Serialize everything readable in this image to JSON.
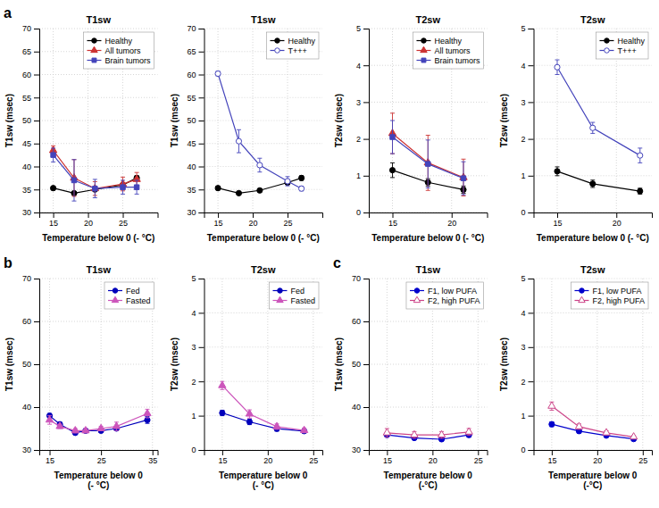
{
  "chart_data": [
    {
      "type": "line",
      "title": "T1sw",
      "annotation": "a",
      "xlabel": "Temperature below 0 (- °C)",
      "ylabel": "T1sw (msec)",
      "xlim": [
        13,
        30
      ],
      "ylim": [
        30,
        70
      ],
      "xticks": [
        15,
        20,
        25
      ],
      "yticks": [
        30,
        35,
        40,
        45,
        50,
        55,
        60,
        65,
        70
      ],
      "grid": true,
      "legend": "upper right",
      "series": [
        {
          "name": "Healthy",
          "color": "#000000",
          "marker": "circle",
          "line_style": "solid",
          "x": [
            15,
            18,
            21,
            25,
            27
          ],
          "values": [
            35.3,
            34.2,
            35.0,
            36.0,
            37.5
          ],
          "errors": [
            0.4,
            0.3,
            0.4,
            0.5,
            0.5
          ]
        },
        {
          "name": "All tumors",
          "color": "#cc3333",
          "marker": "triangle",
          "line_style": "solid",
          "x": [
            15,
            18,
            21,
            25,
            27
          ],
          "values": [
            43.5,
            37.5,
            35.2,
            36.2,
            37.2
          ],
          "errors": [
            1.0,
            4.0,
            1.5,
            1.5,
            1.5
          ]
        },
        {
          "name": "Brain tumors",
          "color": "#4444bb",
          "marker": "square",
          "line_style": "solid",
          "x": [
            15,
            18,
            21,
            25,
            27
          ],
          "values": [
            42.5,
            37.0,
            35.2,
            35.5,
            35.5
          ],
          "errors": [
            1.5,
            4.5,
            2.0,
            1.5,
            1.5
          ]
        }
      ]
    },
    {
      "type": "line",
      "title": "T1sw",
      "xlabel": "Temperature below 0 (- °C)",
      "ylabel": "T1sw (msec)",
      "xlim": [
        13,
        30
      ],
      "ylim": [
        30,
        70
      ],
      "xticks": [
        15,
        20,
        25
      ],
      "yticks": [
        30,
        35,
        40,
        45,
        50,
        55,
        60,
        65,
        70
      ],
      "grid": true,
      "legend": "upper right",
      "series": [
        {
          "name": "Healthy",
          "color": "#000000",
          "marker": "circle",
          "line_style": "solid",
          "x": [
            15,
            18,
            21,
            25,
            27
          ],
          "values": [
            35.3,
            34.2,
            34.8,
            36.5,
            37.5
          ],
          "errors": [
            0.4,
            0.3,
            0.3,
            0.4,
            0.5
          ]
        },
        {
          "name": "T+++",
          "color": "#4444bb",
          "marker": "circle-open",
          "line_style": "solid",
          "x": [
            15,
            18,
            21,
            25,
            27
          ],
          "values": [
            60.2,
            45.5,
            40.3,
            36.8,
            35.2
          ],
          "errors": [
            0.5,
            2.5,
            1.5,
            1.0,
            0.5
          ]
        }
      ]
    },
    {
      "type": "line",
      "title": "T2sw",
      "xlabel": "Temperature below 0 (- °C)",
      "ylabel": "T2sw (msec)",
      "xlim": [
        13,
        23
      ],
      "ylim": [
        0,
        5
      ],
      "xticks": [
        15,
        20
      ],
      "yticks": [
        0,
        1,
        2,
        3,
        4,
        5
      ],
      "grid": true,
      "legend": "upper right",
      "series": [
        {
          "name": "Healthy",
          "color": "#000000",
          "marker": "circle",
          "line_style": "solid",
          "x": [
            15,
            18,
            21
          ],
          "values": [
            1.15,
            0.82,
            0.62
          ],
          "errors": [
            0.2,
            0.1,
            0.1
          ]
        },
        {
          "name": "All tumors",
          "color": "#cc3333",
          "marker": "triangle",
          "line_style": "solid",
          "x": [
            15,
            18,
            21
          ],
          "values": [
            2.15,
            1.35,
            0.95
          ],
          "errors": [
            0.55,
            0.75,
            0.5
          ]
        },
        {
          "name": "Brain tumors",
          "color": "#4444bb",
          "marker": "square",
          "line_style": "solid",
          "x": [
            15,
            18,
            21
          ],
          "values": [
            2.05,
            1.32,
            0.93
          ],
          "errors": [
            0.45,
            0.65,
            0.45
          ]
        }
      ]
    },
    {
      "type": "line",
      "title": "T2sw",
      "xlabel": "Temperature below 0 (- °C)",
      "ylabel": "T2sw (msec)",
      "xlim": [
        13,
        23
      ],
      "ylim": [
        0,
        5
      ],
      "xticks": [
        15,
        20
      ],
      "yticks": [
        0,
        1,
        2,
        3,
        4,
        5
      ],
      "grid": true,
      "legend": "upper right",
      "series": [
        {
          "name": "Healthy",
          "color": "#000000",
          "marker": "circle",
          "line_style": "solid",
          "x": [
            15,
            18,
            22
          ],
          "values": [
            1.12,
            0.78,
            0.58
          ],
          "errors": [
            0.12,
            0.1,
            0.08
          ]
        },
        {
          "name": "T+++",
          "color": "#4444bb",
          "marker": "circle-open",
          "line_style": "solid",
          "x": [
            15,
            18,
            22
          ],
          "values": [
            3.95,
            2.3,
            1.55
          ],
          "errors": [
            0.2,
            0.15,
            0.2
          ]
        }
      ]
    },
    {
      "type": "line",
      "title": "T1sw",
      "annotation": "b",
      "xlabel": "Temperature below 0\n(- °C)",
      "ylabel": "T1sw (msec)",
      "xlim": [
        13,
        36
      ],
      "ylim": [
        30,
        70
      ],
      "xticks": [
        15,
        25,
        35
      ],
      "yticks": [
        30,
        40,
        50,
        60,
        70
      ],
      "grid": true,
      "legend": "upper right",
      "series": [
        {
          "name": "Fed",
          "color": "#0000bb",
          "marker": "circle",
          "line_style": "solid",
          "x": [
            15,
            17,
            20,
            22,
            25,
            28,
            34
          ],
          "values": [
            38.0,
            36.0,
            34.0,
            34.5,
            34.5,
            35.0,
            37.0
          ],
          "errors": [
            0.5,
            0.4,
            0.3,
            0.3,
            0.4,
            0.5,
            0.8
          ]
        },
        {
          "name": "Fasted",
          "color": "#cc55bb",
          "marker": "triangle",
          "line_style": "solid",
          "x": [
            15,
            17,
            20,
            22,
            25,
            28,
            34
          ],
          "values": [
            37.0,
            35.5,
            34.5,
            34.5,
            35.0,
            35.5,
            38.5
          ],
          "errors": [
            1.0,
            0.5,
            0.5,
            0.5,
            0.5,
            1.0,
            1.0
          ]
        }
      ]
    },
    {
      "type": "line",
      "title": "T2sw",
      "xlabel": "Temperature below 0\n(- °C)",
      "ylabel": "T2sw (msec)",
      "xlim": [
        13,
        26
      ],
      "ylim": [
        0,
        5
      ],
      "xticks": [
        15,
        20,
        25
      ],
      "yticks": [
        0,
        1,
        2,
        3,
        4,
        5
      ],
      "grid": true,
      "legend": "upper right",
      "series": [
        {
          "name": "Fed",
          "color": "#0000bb",
          "marker": "circle",
          "line_style": "solid",
          "x": [
            15,
            18,
            21,
            24
          ],
          "values": [
            1.08,
            0.82,
            0.62,
            0.55
          ],
          "errors": [
            0.08,
            0.08,
            0.07,
            0.06
          ]
        },
        {
          "name": "Fasted",
          "color": "#cc55bb",
          "marker": "triangle",
          "line_style": "solid",
          "x": [
            15,
            18,
            21,
            24
          ],
          "values": [
            1.88,
            1.05,
            0.68,
            0.57
          ],
          "errors": [
            0.12,
            0.12,
            0.08,
            0.07
          ]
        }
      ]
    },
    {
      "type": "line",
      "title": "T1sw",
      "annotation": "c",
      "xlabel": "Temperature below 0\n(-°C)",
      "ylabel": "T1sw (msec)",
      "xlim": [
        13,
        26
      ],
      "ylim": [
        30,
        70
      ],
      "xticks": [
        15,
        20,
        25
      ],
      "yticks": [
        30,
        40,
        50,
        60,
        70
      ],
      "grid": true,
      "legend": "upper right",
      "series": [
        {
          "name": "F1, low PUFA",
          "color": "#0000cc",
          "marker": "circle",
          "line_style": "solid",
          "x": [
            15,
            18,
            21,
            24
          ],
          "values": [
            33.5,
            32.8,
            32.5,
            33.5
          ],
          "errors": [
            0.5,
            0.4,
            0.4,
            0.5
          ]
        },
        {
          "name": "F2, high PUFA",
          "color": "#cc4488",
          "marker": "triangle-open",
          "line_style": "solid",
          "x": [
            15,
            18,
            21,
            24
          ],
          "values": [
            34.0,
            33.5,
            33.5,
            34.2
          ],
          "errors": [
            1.0,
            0.8,
            0.8,
            0.8
          ]
        }
      ]
    },
    {
      "type": "line",
      "title": "T2sw",
      "xlabel": "Temperature below 0\n(-°C)",
      "ylabel": "T2sw (msec)",
      "xlim": [
        13,
        26
      ],
      "ylim": [
        0,
        5
      ],
      "xticks": [
        15,
        20,
        25
      ],
      "yticks": [
        0,
        1,
        2,
        3,
        4,
        5
      ],
      "grid": true,
      "legend": "upper right",
      "series": [
        {
          "name": "F1, low PUFA",
          "color": "#0000cc",
          "marker": "circle",
          "line_style": "solid",
          "x": [
            15,
            18,
            21,
            24
          ],
          "values": [
            0.75,
            0.55,
            0.42,
            0.32
          ],
          "errors": [
            0.07,
            0.05,
            0.04,
            0.03
          ]
        },
        {
          "name": "F2, high PUFA",
          "color": "#cc4488",
          "marker": "triangle-open",
          "line_style": "solid",
          "x": [
            15,
            18,
            21,
            24
          ],
          "values": [
            1.28,
            0.68,
            0.5,
            0.38
          ],
          "errors": [
            0.12,
            0.08,
            0.06,
            0.04
          ]
        }
      ]
    }
  ]
}
